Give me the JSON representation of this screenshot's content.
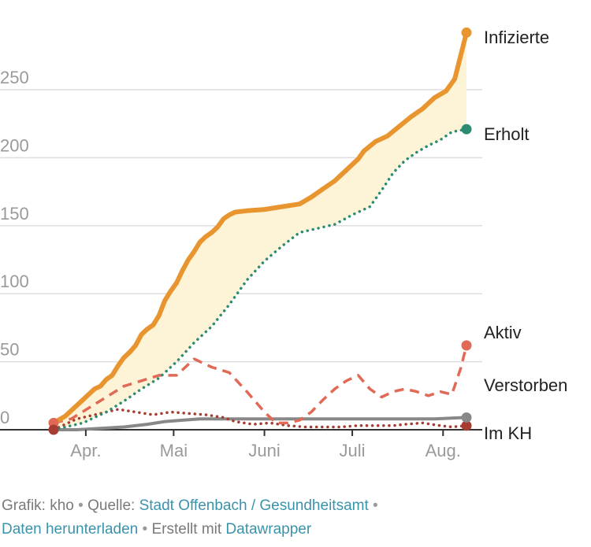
{
  "chart_data": {
    "type": "line",
    "x_tick_labels": [
      "Apr.",
      "Mai",
      "Juni",
      "Juli",
      "Aug."
    ],
    "y_ticks": [
      0,
      50,
      100,
      150,
      200,
      250
    ],
    "ylim": [
      0,
      295
    ],
    "grid": true,
    "area_between": [
      "Infizierte",
      "Erholt"
    ],
    "series": [
      {
        "name": "Infizierte",
        "color": "#e8952f",
        "style": "solid-thick",
        "points": [
          [
            0,
            5
          ],
          [
            4,
            10
          ],
          [
            8,
            18
          ],
          [
            10,
            22
          ],
          [
            12,
            26
          ],
          [
            14,
            30
          ],
          [
            16,
            32
          ],
          [
            18,
            37
          ],
          [
            20,
            40
          ],
          [
            22,
            47
          ],
          [
            24,
            53
          ],
          [
            26,
            57
          ],
          [
            28,
            62
          ],
          [
            30,
            70
          ],
          [
            32,
            74
          ],
          [
            34,
            77
          ],
          [
            36,
            84
          ],
          [
            38,
            95
          ],
          [
            40,
            102
          ],
          [
            42,
            108
          ],
          [
            44,
            117
          ],
          [
            46,
            125
          ],
          [
            48,
            131
          ],
          [
            50,
            138
          ],
          [
            52,
            142
          ],
          [
            54,
            145
          ],
          [
            56,
            149
          ],
          [
            58,
            155
          ],
          [
            60,
            158
          ],
          [
            62,
            160
          ],
          [
            66,
            161
          ],
          [
            72,
            162
          ],
          [
            78,
            164
          ],
          [
            84,
            166
          ],
          [
            88,
            171
          ],
          [
            92,
            177
          ],
          [
            96,
            183
          ],
          [
            100,
            191
          ],
          [
            104,
            199
          ],
          [
            106,
            205
          ],
          [
            110,
            212
          ],
          [
            114,
            216
          ],
          [
            118,
            223
          ],
          [
            122,
            230
          ],
          [
            126,
            236
          ],
          [
            130,
            244
          ],
          [
            134,
            249
          ],
          [
            137,
            258
          ],
          [
            139,
            275
          ],
          [
            141,
            292
          ]
        ]
      },
      {
        "name": "Erholt",
        "color": "#2e8b73",
        "style": "dotted",
        "points": [
          [
            0,
            0
          ],
          [
            10,
            5
          ],
          [
            18,
            13
          ],
          [
            24,
            21
          ],
          [
            30,
            30
          ],
          [
            36,
            38
          ],
          [
            42,
            50
          ],
          [
            48,
            64
          ],
          [
            54,
            76
          ],
          [
            60,
            92
          ],
          [
            66,
            110
          ],
          [
            72,
            124
          ],
          [
            78,
            135
          ],
          [
            84,
            145
          ],
          [
            90,
            148
          ],
          [
            96,
            151
          ],
          [
            102,
            158
          ],
          [
            108,
            164
          ],
          [
            112,
            176
          ],
          [
            116,
            189
          ],
          [
            120,
            198
          ],
          [
            124,
            204
          ],
          [
            128,
            209
          ],
          [
            132,
            213
          ],
          [
            136,
            219
          ],
          [
            141,
            221
          ]
        ]
      },
      {
        "name": "Aktiv",
        "color": "#e06a55",
        "style": "dashed",
        "points": [
          [
            0,
            5
          ],
          [
            6,
            8
          ],
          [
            12,
            16
          ],
          [
            18,
            24
          ],
          [
            24,
            32
          ],
          [
            30,
            36
          ],
          [
            36,
            40
          ],
          [
            42,
            40
          ],
          [
            48,
            52
          ],
          [
            54,
            46
          ],
          [
            60,
            42
          ],
          [
            66,
            28
          ],
          [
            72,
            13
          ],
          [
            76,
            5
          ],
          [
            80,
            5
          ],
          [
            84,
            7
          ],
          [
            88,
            13
          ],
          [
            92,
            22
          ],
          [
            96,
            30
          ],
          [
            100,
            36
          ],
          [
            104,
            40
          ],
          [
            108,
            30
          ],
          [
            112,
            24
          ],
          [
            116,
            28
          ],
          [
            120,
            30
          ],
          [
            124,
            28
          ],
          [
            128,
            25
          ],
          [
            132,
            28
          ],
          [
            136,
            26
          ],
          [
            139,
            45
          ],
          [
            141,
            62
          ]
        ]
      },
      {
        "name": "Verstorben",
        "color": "#a63c32",
        "style": "dotted",
        "points": [
          [
            0,
            0
          ],
          [
            8,
            8
          ],
          [
            16,
            12
          ],
          [
            22,
            15
          ],
          [
            28,
            13
          ],
          [
            34,
            11
          ],
          [
            40,
            13
          ],
          [
            46,
            12
          ],
          [
            52,
            11
          ],
          [
            58,
            9
          ],
          [
            62,
            6
          ],
          [
            68,
            4
          ],
          [
            74,
            5
          ],
          [
            80,
            3
          ],
          [
            86,
            2
          ],
          [
            92,
            2
          ],
          [
            98,
            2
          ],
          [
            104,
            3
          ],
          [
            110,
            3
          ],
          [
            116,
            3
          ],
          [
            120,
            4
          ],
          [
            126,
            5
          ],
          [
            132,
            3
          ],
          [
            136,
            2
          ],
          [
            141,
            3
          ]
        ]
      },
      {
        "name": "Im KH",
        "color": "#888888",
        "style": "solid",
        "points": [
          [
            0,
            0
          ],
          [
            8,
            0
          ],
          [
            16,
            1
          ],
          [
            24,
            2
          ],
          [
            32,
            4
          ],
          [
            38,
            6
          ],
          [
            44,
            7
          ],
          [
            50,
            8
          ],
          [
            60,
            8
          ],
          [
            70,
            8
          ],
          [
            80,
            8
          ],
          [
            90,
            8
          ],
          [
            100,
            8
          ],
          [
            110,
            8
          ],
          [
            120,
            8
          ],
          [
            130,
            8
          ],
          [
            141,
            9
          ]
        ]
      }
    ]
  },
  "footer": {
    "grafik_text": "Grafik: kho",
    "quelle_prefix": "Quelle: ",
    "quelle_link": "Stadt Offenbach / Gesundheitsamt",
    "separator": " • ",
    "download_link": "Daten herunterladen",
    "erstellt_prefix": "Erstellt mit ",
    "datawrapper_link": "Datawrapper"
  }
}
